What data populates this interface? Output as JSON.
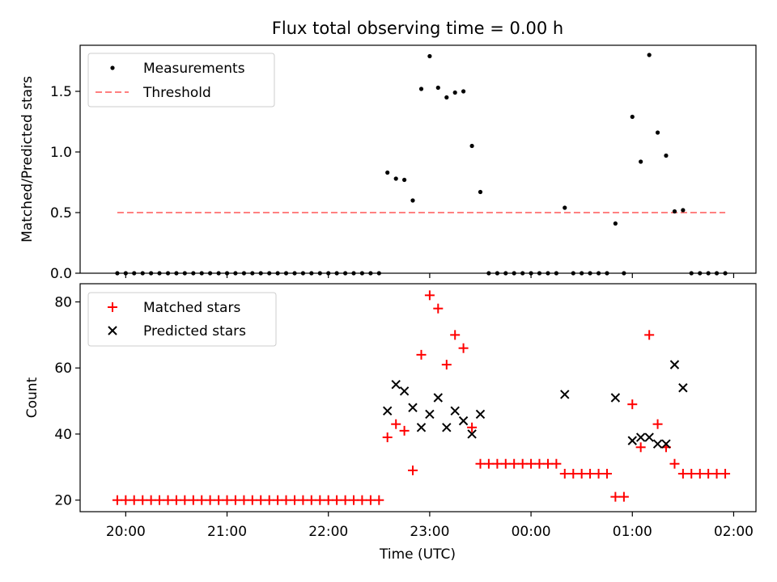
{
  "title": "Flux total observing time = 0.00 h",
  "colors": {
    "threshold": "#ff8080",
    "matched": "#ff0000",
    "measurements": "#000000",
    "predicted": "#000000"
  },
  "x_axis": {
    "label": "Time (UTC)",
    "ticks": [
      "20:00",
      "21:00",
      "22:00",
      "23:00",
      "00:00",
      "01:00",
      "02:00"
    ],
    "tick_hours": [
      20,
      21,
      22,
      23,
      24,
      25,
      26
    ],
    "range_hours": [
      19.55,
      26.22
    ]
  },
  "chart_data": [
    {
      "type": "scatter",
      "panel": "top",
      "ylabel": "Matched/Predicted stars",
      "ylim": [
        0,
        1.88
      ],
      "yticks": [
        0.0,
        0.5,
        1.0,
        1.5
      ],
      "ytick_labels": [
        "0.0",
        "0.5",
        "1.0",
        "1.5"
      ],
      "legend": {
        "placement": "top-left",
        "entries": [
          "Measurements",
          "Threshold"
        ]
      },
      "threshold": {
        "name": "Threshold",
        "value": 0.5,
        "x_start": 19.917,
        "x_end": 25.917
      },
      "series": [
        {
          "name": "Measurements",
          "marker": "dot",
          "x": [
            19.917,
            20.0,
            20.083,
            20.167,
            20.25,
            20.333,
            20.417,
            20.5,
            20.583,
            20.667,
            20.75,
            20.833,
            20.917,
            21.0,
            21.083,
            21.167,
            21.25,
            21.333,
            21.417,
            21.5,
            21.583,
            21.667,
            21.75,
            21.833,
            21.917,
            22.0,
            22.083,
            22.167,
            22.25,
            22.333,
            22.417,
            22.5,
            22.583,
            22.667,
            22.75,
            22.833,
            22.917,
            23.0,
            23.083,
            23.167,
            23.25,
            23.333,
            23.417,
            23.5,
            23.583,
            23.667,
            23.75,
            23.833,
            23.917,
            24.0,
            24.083,
            24.167,
            24.25,
            24.333,
            24.417,
            24.5,
            24.583,
            24.667,
            24.75,
            24.833,
            24.917,
            25.0,
            25.083,
            25.167,
            25.25,
            25.333,
            25.417,
            25.5,
            25.583,
            25.667,
            25.75,
            25.833,
            25.917
          ],
          "y": [
            0,
            0,
            0,
            0,
            0,
            0,
            0,
            0,
            0,
            0,
            0,
            0,
            0,
            0,
            0,
            0,
            0,
            0,
            0,
            0,
            0,
            0,
            0,
            0,
            0,
            0,
            0,
            0,
            0,
            0,
            0,
            0,
            0.83,
            0.78,
            0.77,
            0.6,
            1.52,
            1.79,
            1.53,
            1.45,
            1.49,
            1.5,
            1.05,
            0.67,
            0,
            0,
            0,
            0,
            0,
            0,
            0,
            0,
            0,
            0.54,
            0,
            0,
            0,
            0,
            0,
            0.41,
            0,
            1.29,
            0.92,
            1.8,
            1.16,
            0.97,
            0.51,
            0.52,
            0,
            0,
            0,
            0,
            0
          ]
        }
      ]
    },
    {
      "type": "scatter",
      "panel": "bottom",
      "ylabel": "Count",
      "ylim": [
        16.5,
        85.5
      ],
      "yticks": [
        20,
        40,
        60,
        80
      ],
      "ytick_labels": [
        "20",
        "40",
        "60",
        "80"
      ],
      "legend": {
        "placement": "top-left",
        "entries": [
          "Matched stars",
          "Predicted stars"
        ]
      },
      "series": [
        {
          "name": "Matched stars",
          "marker": "plus",
          "x": [
            19.917,
            20.0,
            20.083,
            20.167,
            20.25,
            20.333,
            20.417,
            20.5,
            20.583,
            20.667,
            20.75,
            20.833,
            20.917,
            21.0,
            21.083,
            21.167,
            21.25,
            21.333,
            21.417,
            21.5,
            21.583,
            21.667,
            21.75,
            21.833,
            21.917,
            22.0,
            22.083,
            22.167,
            22.25,
            22.333,
            22.417,
            22.5,
            22.583,
            22.667,
            22.75,
            22.833,
            22.917,
            23.0,
            23.083,
            23.167,
            23.25,
            23.333,
            23.417,
            23.5,
            23.583,
            23.667,
            23.75,
            23.833,
            23.917,
            24.0,
            24.083,
            24.167,
            24.25,
            24.333,
            24.417,
            24.5,
            24.583,
            24.667,
            24.75,
            24.833,
            24.917,
            25.0,
            25.083,
            25.167,
            25.25,
            25.333,
            25.417,
            25.5,
            25.583,
            25.667,
            25.75,
            25.833,
            25.917
          ],
          "y": [
            20,
            20,
            20,
            20,
            20,
            20,
            20,
            20,
            20,
            20,
            20,
            20,
            20,
            20,
            20,
            20,
            20,
            20,
            20,
            20,
            20,
            20,
            20,
            20,
            20,
            20,
            20,
            20,
            20,
            20,
            20,
            20,
            39,
            43,
            41,
            29,
            64,
            82,
            78,
            61,
            70,
            66,
            42,
            31,
            31,
            31,
            31,
            31,
            31,
            31,
            31,
            31,
            31,
            28,
            28,
            28,
            28,
            28,
            28,
            21,
            21,
            49,
            36,
            70,
            43,
            36,
            31,
            28,
            28,
            28,
            28,
            28,
            28
          ]
        },
        {
          "name": "Predicted stars",
          "marker": "x",
          "x": [
            22.583,
            22.667,
            22.75,
            22.833,
            22.917,
            23.0,
            23.083,
            23.167,
            23.25,
            23.333,
            23.417,
            23.5,
            24.333,
            24.833,
            25.0,
            25.083,
            25.167,
            25.25,
            25.333,
            25.417,
            25.5
          ],
          "y": [
            47,
            55,
            53,
            48,
            42,
            46,
            51,
            42,
            47,
            44,
            40,
            46,
            52,
            51,
            38,
            39,
            39,
            37,
            37,
            61,
            54
          ]
        }
      ]
    }
  ]
}
